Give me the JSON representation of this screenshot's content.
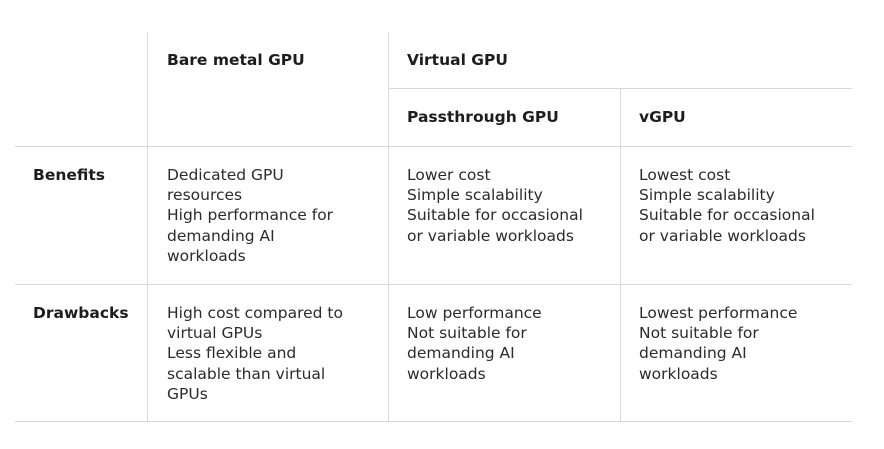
{
  "columns": {
    "bare_metal": "Bare metal GPU",
    "virtual": "Virtual GPU",
    "passthrough": "Passthrough GPU",
    "vgpu": "vGPU"
  },
  "rows": {
    "benefits": {
      "label": "Benefits",
      "bare_metal": [
        "Dedicated GPU",
        "resources",
        "High performance for",
        "demanding AI",
        "workloads"
      ],
      "passthrough": [
        "Lower cost",
        "Simple scalability",
        "Suitable for occasional",
        "or variable workloads"
      ],
      "vgpu": [
        "Lowest cost",
        "Simple scalability",
        "Suitable for occasional",
        "or variable workloads"
      ]
    },
    "drawbacks": {
      "label": "Drawbacks",
      "bare_metal": [
        "High cost compared to",
        "virtual GPUs",
        "Less flexible and",
        "scalable than virtual",
        "GPUs"
      ],
      "passthrough": [
        "Low performance",
        "Not suitable for",
        "demanding AI",
        "workloads"
      ],
      "vgpu": [
        "Lowest performance",
        "Not suitable for",
        "demanding AI",
        "workloads"
      ]
    }
  }
}
